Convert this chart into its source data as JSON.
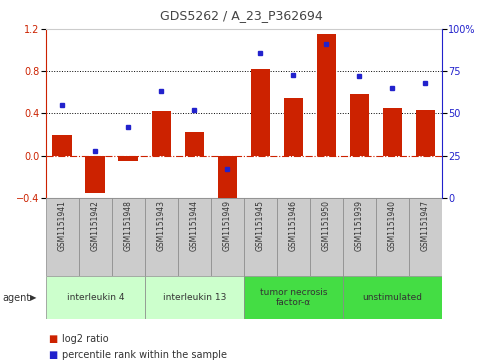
{
  "title": "GDS5262 / A_23_P362694",
  "samples": [
    "GSM1151941",
    "GSM1151942",
    "GSM1151948",
    "GSM1151943",
    "GSM1151944",
    "GSM1151949",
    "GSM1151945",
    "GSM1151946",
    "GSM1151950",
    "GSM1151939",
    "GSM1151940",
    "GSM1151947"
  ],
  "log2_ratio": [
    0.2,
    -0.35,
    -0.05,
    0.42,
    0.22,
    -0.45,
    0.82,
    0.55,
    1.15,
    0.58,
    0.45,
    0.43
  ],
  "percentile": [
    55,
    28,
    42,
    63,
    52,
    17,
    86,
    73,
    91,
    72,
    65,
    68
  ],
  "bar_color": "#CC2200",
  "dot_color": "#2222CC",
  "ylim_left": [
    -0.4,
    1.2
  ],
  "ylim_right": [
    0,
    100
  ],
  "yticks_left": [
    -0.4,
    0.0,
    0.4,
    0.8,
    1.2
  ],
  "yticks_right": [
    0,
    25,
    50,
    75,
    100
  ],
  "groups": [
    {
      "label": "interleukin 4",
      "start": 0,
      "end": 3,
      "color": "#ccffcc"
    },
    {
      "label": "interleukin 13",
      "start": 3,
      "end": 6,
      "color": "#ccffcc"
    },
    {
      "label": "tumor necrosis\nfactor-α",
      "start": 6,
      "end": 9,
      "color": "#44dd44"
    },
    {
      "label": "unstimulated",
      "start": 9,
      "end": 12,
      "color": "#44dd44"
    }
  ],
  "legend_bar_label": "log2 ratio",
  "legend_dot_label": "percentile rank within the sample",
  "agent_label": "agent",
  "background_color": "#ffffff",
  "dotted_line_color": "#000000",
  "zero_line_color": "#CC2200",
  "sample_box_color": "#cccccc",
  "sample_box_edge": "#888888"
}
